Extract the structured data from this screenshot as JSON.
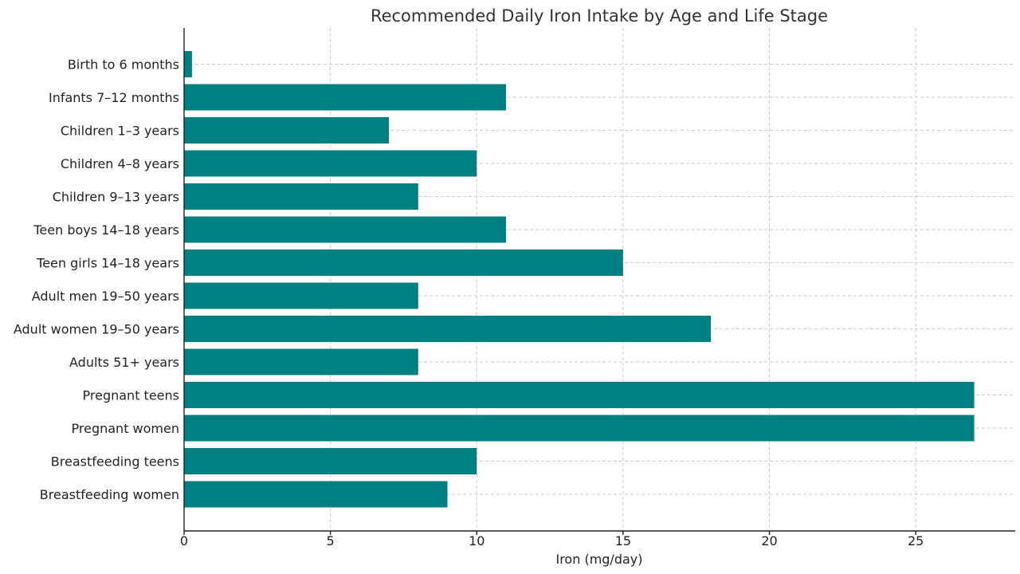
{
  "chart_data": {
    "type": "bar",
    "orientation": "horizontal",
    "title": "Recommended Daily Iron Intake by Age and Life Stage",
    "xlabel": "Iron (mg/day)",
    "ylabel": "",
    "xlim": [
      0,
      28.4
    ],
    "xticks": [
      0,
      5,
      10,
      15,
      20,
      25
    ],
    "grid": true,
    "bar_color": "#008080",
    "categories": [
      "Birth to 6 months",
      "Infants 7–12 months",
      "Children 1–3 years",
      "Children 4–8 years",
      "Children 9–13 years",
      "Teen boys 14–18 years",
      "Teen girls 14–18 years",
      "Adult men 19–50 years",
      "Adult women 19–50 years",
      "Adults 51+ years",
      "Pregnant teens",
      "Pregnant women",
      "Breastfeeding teens",
      "Breastfeeding women"
    ],
    "values": [
      0.27,
      11,
      7,
      10,
      8,
      11,
      15,
      8,
      18,
      8,
      27,
      27,
      10,
      9
    ]
  }
}
